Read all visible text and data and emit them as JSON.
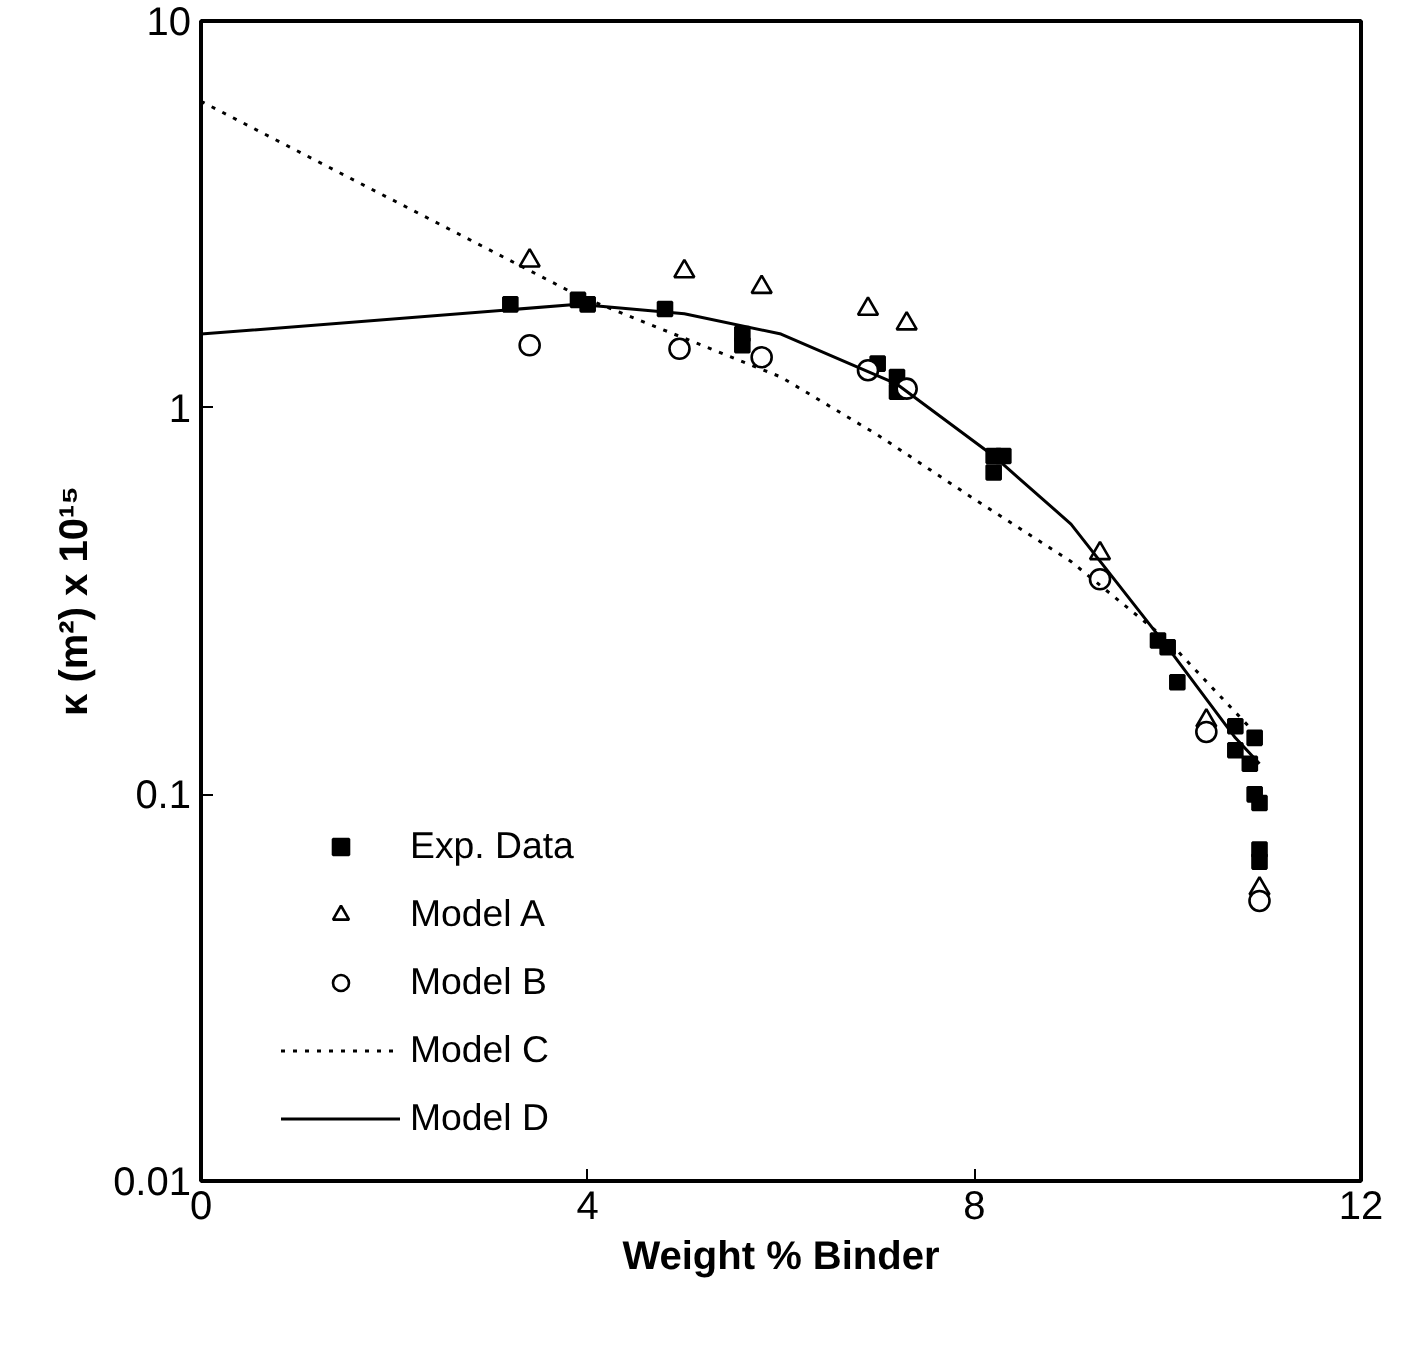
{
  "chart_data": {
    "type": "scatter",
    "xlabel": "Weight % Binder",
    "ylabel": "κ (m²) x 10¹⁵",
    "log": "y",
    "xlim": [
      0,
      12
    ],
    "ylim": [
      0.01,
      10
    ],
    "xticks": [
      0,
      4,
      8,
      12
    ],
    "yticks": [
      0.01,
      0.1,
      1,
      10
    ],
    "grid": false,
    "legend": "left",
    "series": [
      {
        "name": "Exp. Data",
        "marker": "square",
        "color": "#000000",
        "x": [
          3.2,
          3.9,
          4.0,
          4.8,
          5.6,
          5.6,
          7.0,
          7.2,
          7.2,
          8.2,
          8.3,
          8.2,
          9.9,
          10.0,
          10.1,
          10.7,
          10.7,
          10.9,
          10.85,
          10.9,
          10.95,
          10.95,
          10.95
        ],
        "values": [
          1.85,
          1.9,
          1.85,
          1.8,
          1.55,
          1.45,
          1.3,
          1.2,
          1.1,
          0.75,
          0.75,
          0.68,
          0.25,
          0.24,
          0.195,
          0.15,
          0.13,
          0.14,
          0.12,
          0.1,
          0.095,
          0.072,
          0.067
        ]
      },
      {
        "name": "Model A",
        "marker": "triangle",
        "color": "#000000",
        "x": [
          3.4,
          5.0,
          5.8,
          6.9,
          7.3,
          9.3,
          10.4,
          10.95
        ],
        "values": [
          2.4,
          2.25,
          2.05,
          1.8,
          1.65,
          0.42,
          0.155,
          0.057
        ]
      },
      {
        "name": "Model B",
        "marker": "circle",
        "color": "#000000",
        "x": [
          3.4,
          4.95,
          5.8,
          6.9,
          7.3,
          9.3,
          10.4,
          10.95
        ],
        "values": [
          1.45,
          1.42,
          1.35,
          1.25,
          1.12,
          0.36,
          0.145,
          0.053
        ]
      },
      {
        "name": "Model C",
        "type": "line",
        "line_style": "dotted",
        "color": "#000000",
        "x": [
          0,
          3.9,
          6,
          7,
          8,
          9,
          10,
          10.95
        ],
        "values": [
          6.2,
          1.95,
          1.2,
          0.85,
          0.58,
          0.4,
          0.25,
          0.14
        ]
      },
      {
        "name": "Model D",
        "type": "line",
        "line_style": "solid",
        "color": "#000000",
        "x": [
          0,
          3.9,
          5,
          6,
          7.2,
          8.2,
          9,
          10,
          10.7,
          10.95
        ],
        "values": [
          1.55,
          1.85,
          1.75,
          1.55,
          1.15,
          0.75,
          0.5,
          0.24,
          0.14,
          0.12
        ]
      }
    ]
  }
}
